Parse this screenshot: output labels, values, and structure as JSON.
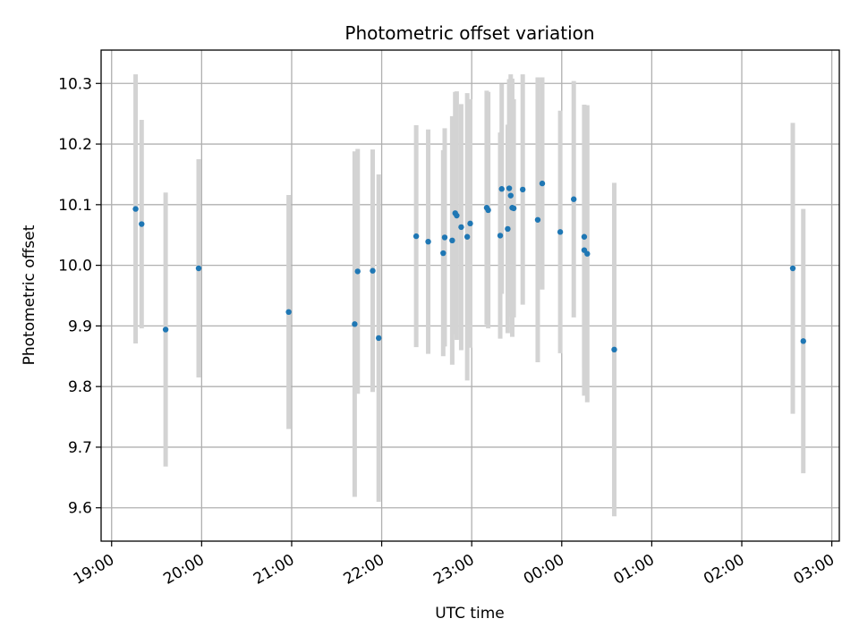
{
  "chart_data": {
    "type": "scatter",
    "title": "Photometric offset variation",
    "xlabel": "UTC time",
    "ylabel": "Photometric offset",
    "x_is_time": true,
    "xlim": [
      "2024-01-01T18:53",
      "2024-01-02T03:05"
    ],
    "ylim": [
      9.545,
      10.355
    ],
    "x_ticks": [
      {
        "value": "2024-01-01T19:00",
        "label": "19:00"
      },
      {
        "value": "2024-01-01T20:00",
        "label": "20:00"
      },
      {
        "value": "2024-01-01T21:00",
        "label": "21:00"
      },
      {
        "value": "2024-01-01T22:00",
        "label": "22:00"
      },
      {
        "value": "2024-01-01T23:00",
        "label": "23:00"
      },
      {
        "value": "2024-01-02T00:00",
        "label": "00:00"
      },
      {
        "value": "2024-01-02T01:00",
        "label": "01:00"
      },
      {
        "value": "2024-01-02T02:00",
        "label": "02:00"
      },
      {
        "value": "2024-01-02T03:00",
        "label": "03:00"
      }
    ],
    "y_ticks": [
      9.6,
      9.7,
      9.8,
      9.9,
      10.0,
      10.1,
      10.2,
      10.3
    ],
    "grid": true,
    "point_color": "#1f77b4",
    "errorbar_color": "#d3d3d3",
    "points": [
      {
        "x": "2024-01-01T19:16",
        "y": 10.093,
        "yerr": 0.222
      },
      {
        "x": "2024-01-01T19:20",
        "y": 10.068,
        "yerr": 0.172
      },
      {
        "x": "2024-01-01T19:36",
        "y": 9.894,
        "yerr": 0.226
      },
      {
        "x": "2024-01-01T19:58",
        "y": 9.995,
        "yerr": 0.18
      },
      {
        "x": "2024-01-01T20:58",
        "y": 9.923,
        "yerr": 0.193
      },
      {
        "x": "2024-01-01T21:42",
        "y": 9.903,
        "yerr": 0.285
      },
      {
        "x": "2024-01-01T21:44",
        "y": 9.99,
        "yerr": 0.202
      },
      {
        "x": "2024-01-01T21:54",
        "y": 9.991,
        "yerr": 0.2
      },
      {
        "x": "2024-01-01T21:58",
        "y": 9.88,
        "yerr": 0.27
      },
      {
        "x": "2024-01-01T22:23",
        "y": 10.048,
        "yerr": 0.183
      },
      {
        "x": "2024-01-01T22:31",
        "y": 10.039,
        "yerr": 0.185
      },
      {
        "x": "2024-01-01T22:41",
        "y": 10.02,
        "yerr": 0.17
      },
      {
        "x": "2024-01-01T22:42",
        "y": 10.046,
        "yerr": 0.18
      },
      {
        "x": "2024-01-01T22:47",
        "y": 10.041,
        "yerr": 0.205
      },
      {
        "x": "2024-01-01T22:49",
        "y": 10.086,
        "yerr": 0.2
      },
      {
        "x": "2024-01-01T22:50",
        "y": 10.082,
        "yerr": 0.205
      },
      {
        "x": "2024-01-01T22:53",
        "y": 10.063,
        "yerr": 0.203
      },
      {
        "x": "2024-01-01T22:57",
        "y": 10.047,
        "yerr": 0.237
      },
      {
        "x": "2024-01-01T22:59",
        "y": 10.069,
        "yerr": 0.205
      },
      {
        "x": "2024-01-01T23:10",
        "y": 10.095,
        "yerr": 0.193
      },
      {
        "x": "2024-01-01T23:11",
        "y": 10.091,
        "yerr": 0.195
      },
      {
        "x": "2024-01-01T23:19",
        "y": 10.049,
        "yerr": 0.17
      },
      {
        "x": "2024-01-01T23:20",
        "y": 10.126,
        "yerr": 0.173
      },
      {
        "x": "2024-01-01T23:24",
        "y": 10.06,
        "yerr": 0.172
      },
      {
        "x": "2024-01-01T23:25",
        "y": 10.127,
        "yerr": 0.18
      },
      {
        "x": "2024-01-01T23:26",
        "y": 10.115,
        "yerr": 0.2
      },
      {
        "x": "2024-01-01T23:27",
        "y": 10.095,
        "yerr": 0.213
      },
      {
        "x": "2024-01-01T23:28",
        "y": 10.094,
        "yerr": 0.18
      },
      {
        "x": "2024-01-01T23:34",
        "y": 10.125,
        "yerr": 0.19
      },
      {
        "x": "2024-01-01T23:44",
        "y": 10.075,
        "yerr": 0.235
      },
      {
        "x": "2024-01-01T23:47",
        "y": 10.135,
        "yerr": 0.175
      },
      {
        "x": "2024-01-01T23:59",
        "y": 10.055,
        "yerr": 0.2
      },
      {
        "x": "2024-01-02T00:08",
        "y": 10.109,
        "yerr": 0.195
      },
      {
        "x": "2024-01-02T00:15",
        "y": 10.047,
        "yerr": 0.215
      },
      {
        "x": "2024-01-02T00:15",
        "y": 10.025,
        "yerr": 0.24
      },
      {
        "x": "2024-01-02T00:17",
        "y": 10.019,
        "yerr": 0.245
      },
      {
        "x": "2024-01-02T00:35",
        "y": 9.861,
        "yerr": 0.275
      },
      {
        "x": "2024-01-02T02:34",
        "y": 9.995,
        "yerr": 0.24
      },
      {
        "x": "2024-01-02T02:41",
        "y": 9.875,
        "yerr": 0.218
      }
    ]
  }
}
